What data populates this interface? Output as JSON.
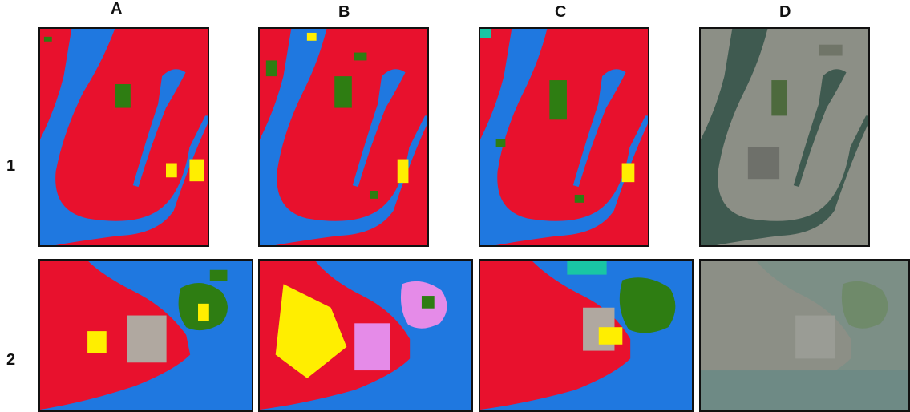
{
  "columns": [
    "A",
    "B",
    "C",
    "D"
  ],
  "rows": [
    "1",
    "2"
  ],
  "palette": {
    "urban": "#e8112d",
    "water": "#1f78e0",
    "vegetation": "#2e7d12",
    "bare": "#ffee00",
    "grey": "#b0a8a0",
    "pink": "#e58be8",
    "teal": "#19c6a4",
    "satellite_land": "#8c8f86",
    "satellite_water": "#3f5a50"
  },
  "panels": [
    {
      "row": "1",
      "col": "A",
      "kind": "classification-map",
      "scene": "manhattan"
    },
    {
      "row": "1",
      "col": "B",
      "kind": "classification-map",
      "scene": "manhattan"
    },
    {
      "row": "1",
      "col": "C",
      "kind": "classification-map",
      "scene": "manhattan"
    },
    {
      "row": "1",
      "col": "D",
      "kind": "satellite-image",
      "scene": "manhattan"
    },
    {
      "row": "2",
      "col": "A",
      "kind": "classification-map",
      "scene": "jamaica-bay"
    },
    {
      "row": "2",
      "col": "B",
      "kind": "classification-map",
      "scene": "jamaica-bay"
    },
    {
      "row": "2",
      "col": "C",
      "kind": "classification-map",
      "scene": "jamaica-bay"
    },
    {
      "row": "2",
      "col": "D",
      "kind": "satellite-image",
      "scene": "jamaica-bay"
    }
  ]
}
